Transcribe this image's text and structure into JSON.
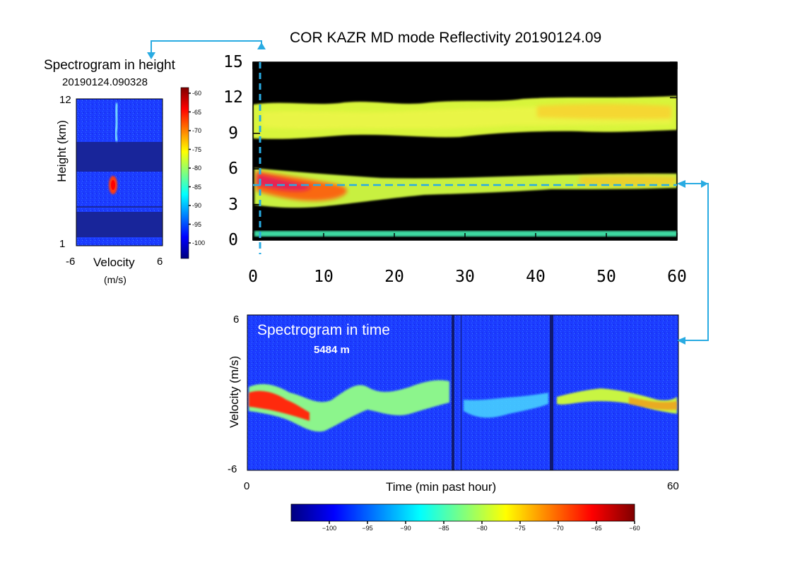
{
  "colors": {
    "background_black": "#000000",
    "noise_blue": "#1c3cff",
    "annotation_cyan": "#29abe2"
  },
  "chart_data": [
    {
      "type": "heatmap",
      "title": "COR KAZR MD mode Reflectivity 20190124.09",
      "xlabel": "",
      "ylabel": "",
      "xlim": [
        0,
        60
      ],
      "ylim": [
        0,
        15
      ],
      "xticks": [
        "0",
        "10",
        "20",
        "30",
        "40",
        "50",
        "60"
      ],
      "yticks": [
        "0",
        "3",
        "6",
        "9",
        "12",
        "15"
      ],
      "layers": [
        {
          "name": "upper cloud",
          "height_range_km": [
            9,
            12
          ],
          "reflectivity_dbz": -78
        },
        {
          "name": "mid cloud",
          "height_range_km": [
            3.5,
            6.5
          ],
          "reflectivity_dbz": -72
        },
        {
          "name": "low layer",
          "height_range_km": [
            1,
            1.5
          ],
          "reflectivity_dbz": -88
        }
      ],
      "markers": {
        "time_min": 1,
        "height_m": 5484
      }
    },
    {
      "type": "heatmap",
      "title": "Spectrogram in height",
      "subtitle": "20190124.090328",
      "xlabel": "Velocity",
      "xlabel_unit": "(m/s)",
      "ylabel": "Height (km)",
      "xticks": [
        "-6",
        "6"
      ],
      "yticks": [
        "12",
        "1"
      ],
      "colorbar_ticks": [
        "-60",
        "-65",
        "-70",
        "-75",
        "-80",
        "-85",
        "-90",
        "-95",
        "-100"
      ]
    },
    {
      "type": "heatmap",
      "title": "Spectrogram in time",
      "subtitle": "5484 m",
      "xlabel": "Time (min past hour)",
      "ylabel": "Velocity (m/s)",
      "xticks": [
        "0",
        "60"
      ],
      "yticks": [
        "6",
        "-6"
      ]
    }
  ],
  "colorbar": {
    "ticks": [
      "−100",
      "−95",
      "−90",
      "−85",
      "−80",
      "−75",
      "−70",
      "−65",
      "−60"
    ],
    "range": [
      -105,
      -60
    ]
  }
}
